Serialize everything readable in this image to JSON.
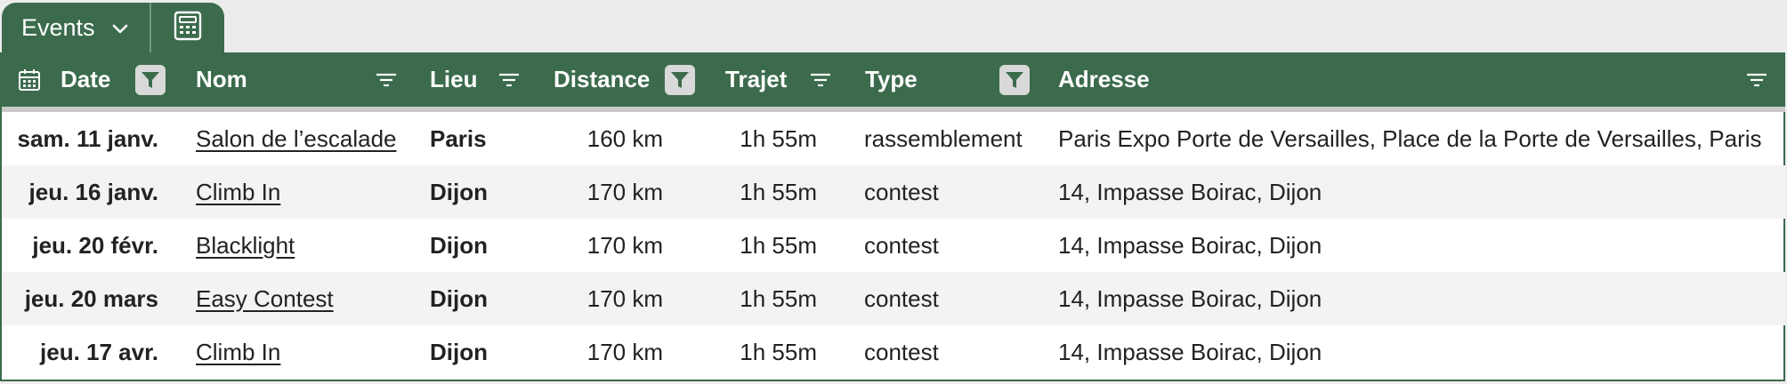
{
  "tabs": {
    "events_label": "Events"
  },
  "columns": {
    "date": "Date",
    "nom": "Nom",
    "lieu": "Lieu",
    "distance": "Distance",
    "trajet": "Trajet",
    "type": "Type",
    "adresse": "Adresse"
  },
  "rows": [
    {
      "date": "sam. 11 janv.",
      "nom": "Salon de l’escalade",
      "lieu": "Paris",
      "distance": "160 km",
      "trajet": "1h 55m",
      "type": "rassemblement",
      "adresse": "Paris Expo Porte de Versailles, Place de la Porte de Versailles, Paris"
    },
    {
      "date": "jeu. 16 janv.",
      "nom": "Climb In",
      "lieu": "Dijon",
      "distance": "170 km",
      "trajet": "1h 55m",
      "type": "contest",
      "adresse": "14, Impasse Boirac, Dijon"
    },
    {
      "date": "jeu. 20 févr.",
      "nom": "Blacklight",
      "lieu": "Dijon",
      "distance": "170 km",
      "trajet": "1h 55m",
      "type": "contest",
      "adresse": "14, Impasse Boirac, Dijon"
    },
    {
      "date": "jeu. 20 mars",
      "nom": "Easy Contest",
      "lieu": "Dijon",
      "distance": "170 km",
      "trajet": "1h 55m",
      "type": "contest",
      "adresse": "14, Impasse Boirac, Dijon"
    },
    {
      "date": "jeu. 17 avr.",
      "nom": "Climb In",
      "lieu": "Dijon",
      "distance": "170 km",
      "trajet": "1h 55m",
      "type": "contest",
      "adresse": "14, Impasse Boirac, Dijon"
    }
  ],
  "colors": {
    "header_bg": "#3b6b4c",
    "alt_row_bg": "#f3f3f4",
    "filter_active_bg": "#d9d9d9"
  },
  "icons": {
    "tab_dropdown": "chevron-down-icon",
    "tab_calc": "calculator-icon",
    "date_column": "calendar-icon",
    "filter_active": "filter-funnel-icon",
    "filter_inactive": "sort-lines-icon"
  }
}
